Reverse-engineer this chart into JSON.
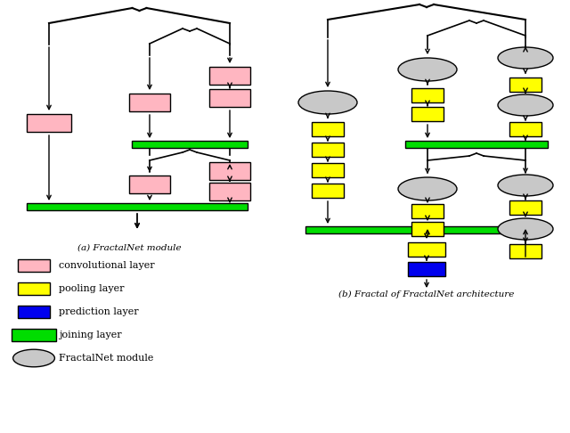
{
  "fig_width": 6.4,
  "fig_height": 4.86,
  "bg_color": "#ffffff",
  "pink": "#ffb6c1",
  "yellow": "#ffff00",
  "blue": "#0000ee",
  "green": "#00dd00",
  "gray": "#c8c8c8",
  "black": "#000000",
  "subtitle_a": "(a) FractalNet module",
  "subtitle_b": "(b) Fractal of FractalNet architecture",
  "legend_items": [
    {
      "label": "convolutional layer",
      "color": "#ffb6c1",
      "shape": "rect"
    },
    {
      "label": "pooling layer",
      "color": "#ffff00",
      "shape": "rect"
    },
    {
      "label": "prediction layer",
      "color": "#0000ee",
      "shape": "rect"
    },
    {
      "label": "joining layer",
      "color": "#00dd00",
      "shape": "wide_rect"
    },
    {
      "label": "FractalNet module",
      "color": "#c8c8c8",
      "shape": "oval"
    }
  ]
}
